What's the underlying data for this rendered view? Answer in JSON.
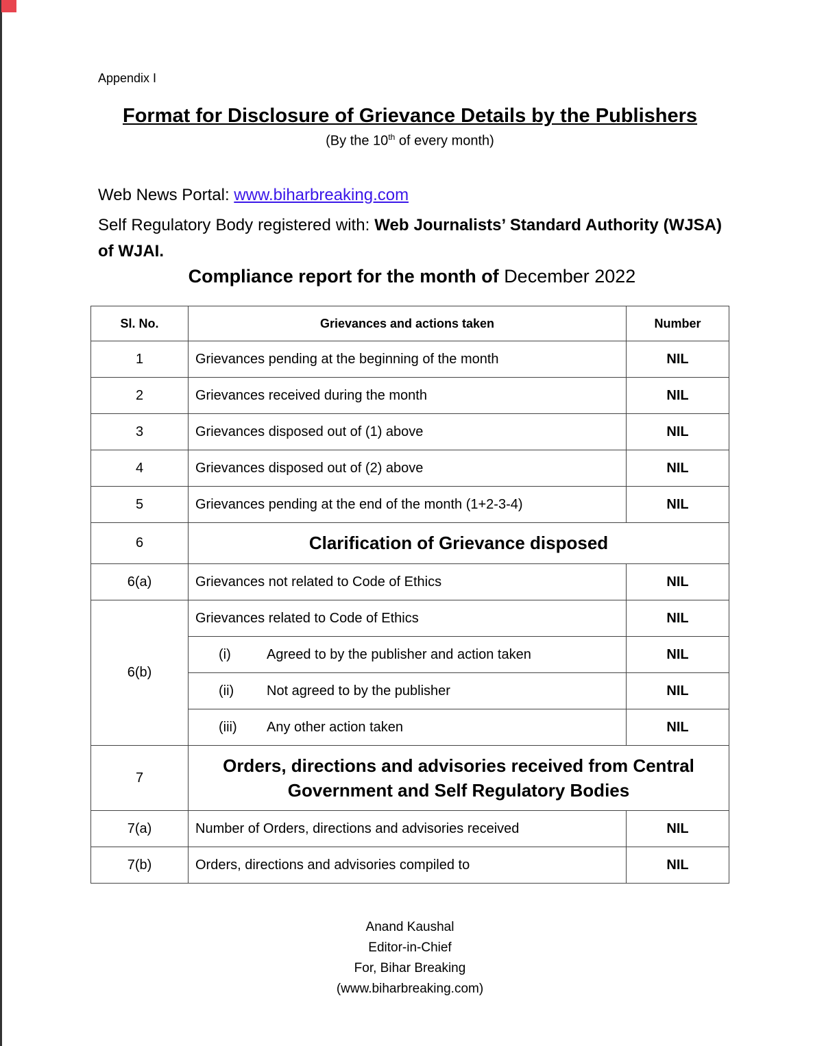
{
  "appendix": "Appendix I",
  "title": "Format for Disclosure of Grievance Details by the Publishers",
  "subtitle": {
    "pre": "(By the 10",
    "sup": "th",
    "post": " of every month)"
  },
  "portal": {
    "label": "Web News Portal: ",
    "url": "www.biharbreaking.com"
  },
  "srb": {
    "label": "Self Regulatory Body registered with: ",
    "body": "Web Journalists’ Standard Authority (WJSA) of WJAI."
  },
  "report": {
    "label": "Compliance report for the month of ",
    "month": "December 2022"
  },
  "table": {
    "headers": [
      "Sl. No.",
      "Grievances and actions taken",
      "Number"
    ],
    "rows": [
      {
        "sl": "1",
        "text": "Grievances pending at the beginning of the month",
        "num": "NIL"
      },
      {
        "sl": "2",
        "text": "Grievances received during the month",
        "num": "NIL"
      },
      {
        "sl": "3",
        "text": "Grievances disposed out of (1) above",
        "num": "NIL"
      },
      {
        "sl": "4",
        "text": "Grievances disposed out of (2) above",
        "num": "NIL"
      },
      {
        "sl": "5",
        "text": "Grievances pending at the end of the month (1+2-3-4)",
        "num": "NIL"
      }
    ],
    "sec6": {
      "sl": "6",
      "text": "Clarification of Grievance disposed"
    },
    "r6a": {
      "sl": "6(a)",
      "text": "Grievances not related to Code of Ethics",
      "num": "NIL"
    },
    "r6b": {
      "sl": "6(b)",
      "text": "Grievances related to Code of Ethics",
      "num": "NIL",
      "subs": [
        {
          "n": "(i)",
          "text": "Agreed to by the publisher and action taken",
          "num": "NIL"
        },
        {
          "n": "(ii)",
          "text": "Not agreed to by the publisher",
          "num": "NIL"
        },
        {
          "n": "(iii)",
          "text": "Any other action taken",
          "num": "NIL"
        }
      ]
    },
    "sec7": {
      "sl": "7",
      "line1": "Orders, directions and advisories received from Central",
      "line2": "Government and Self Regulatory Bodies"
    },
    "r7a": {
      "sl": "7(a)",
      "text": "Number of Orders, directions and advisories received",
      "num": "NIL"
    },
    "r7b": {
      "sl": "7(b)",
      "text": "Orders, directions and advisories compiled to",
      "num": "NIL"
    }
  },
  "signature": {
    "name": "Anand Kaushal",
    "role": "Editor-in-Chief",
    "org": "For, Bihar Breaking",
    "site": "(www.biharbreaking.com)"
  }
}
